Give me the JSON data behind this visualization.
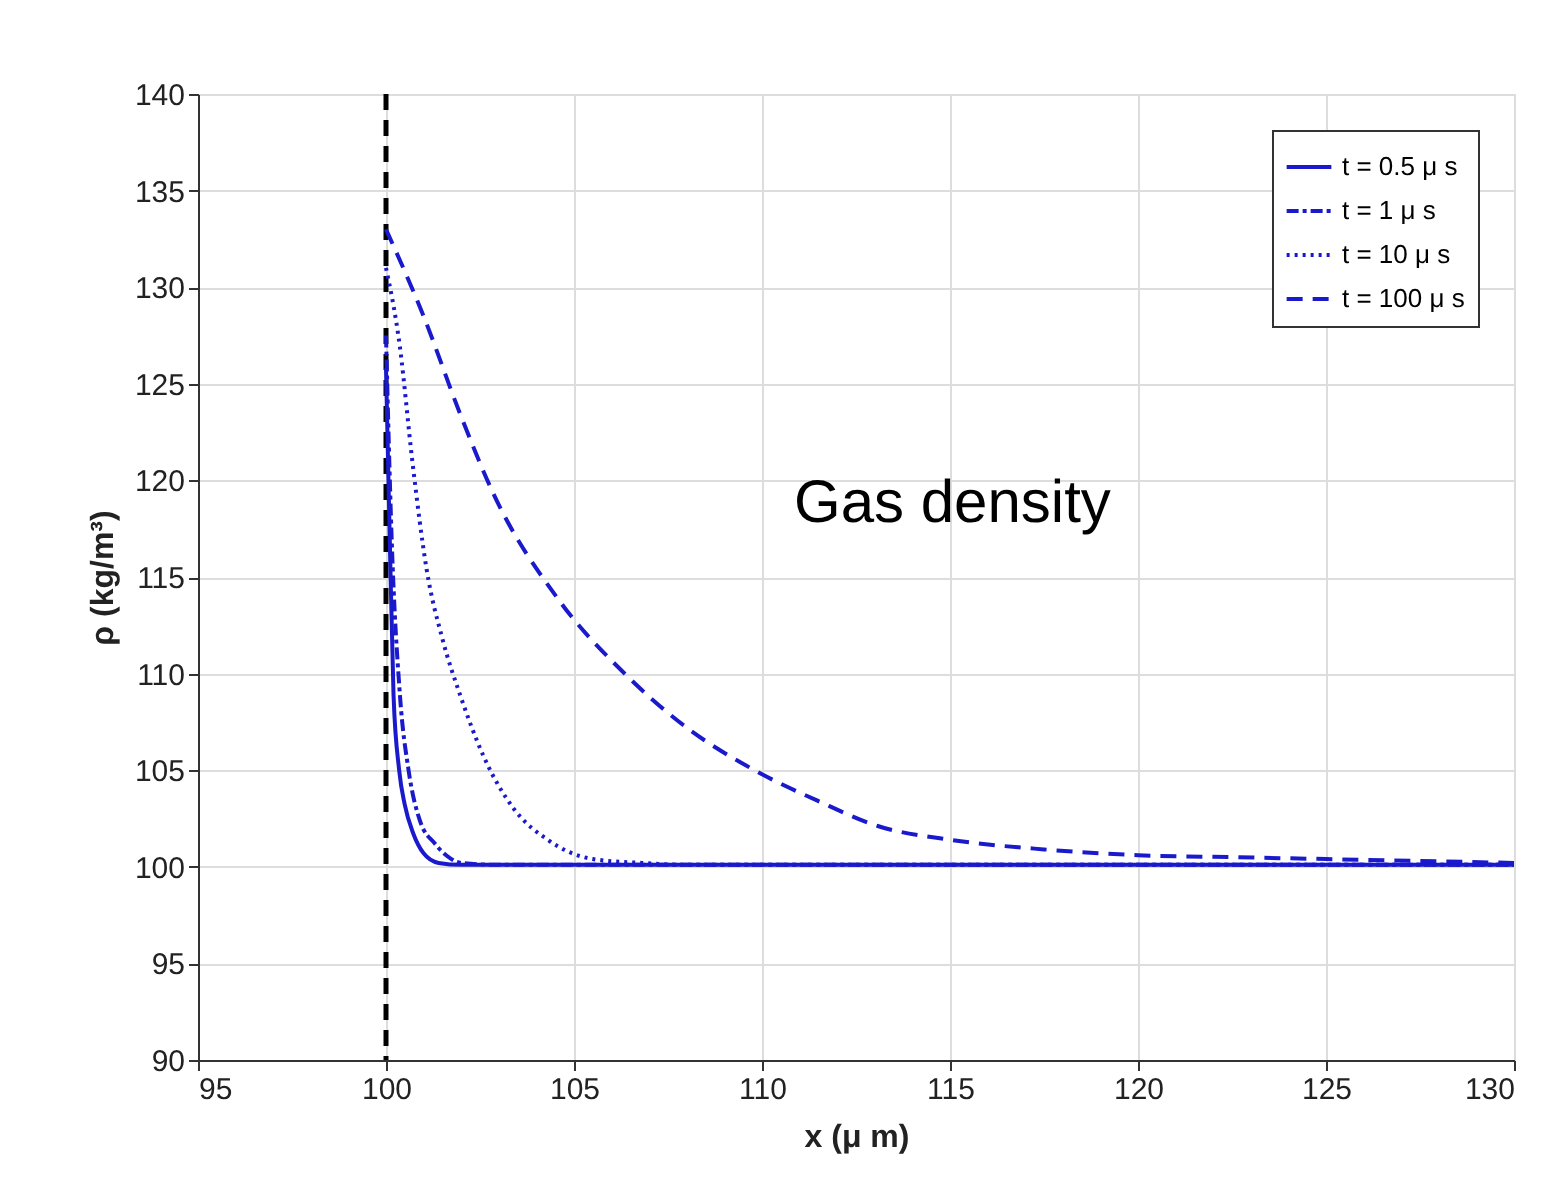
{
  "chart_data": {
    "type": "line",
    "xlabel": "x (μ m)",
    "ylabel": "ρ (kg/m³)",
    "xlim": [
      95,
      130
    ],
    "xticks": [
      95,
      100,
      105,
      110,
      115,
      120,
      125,
      130
    ],
    "ylim": [
      90,
      140
    ],
    "yticks": [
      90,
      95,
      100,
      105,
      110,
      115,
      120,
      125,
      130,
      135,
      140
    ],
    "grid": true,
    "legend": "top right",
    "marker": "none",
    "series": [
      {
        "name": "t = 0.5 μ s",
        "color": "#1a1acc",
        "line_style": "solid",
        "x": [
          100,
          100.1,
          100.2,
          100.35,
          100.5,
          100.73,
          101,
          101.4,
          102,
          105,
          110,
          120,
          130
        ],
        "values": [
          125.8,
          117,
          108.9,
          105,
          103.2,
          101.7,
          100.7,
          100.2,
          100.1,
          100.1,
          100.1,
          100.1,
          100.1
        ]
      },
      {
        "name": "t = 1 μ s",
        "color": "#1a1acc",
        "line_style": "dashdot",
        "x": [
          100,
          100.15,
          100.37,
          100.6,
          100.9,
          101.3,
          101.6,
          102,
          103,
          105,
          110,
          120,
          130
        ],
        "values": [
          127.5,
          117,
          108.9,
          105,
          102.4,
          101.2,
          100.6,
          100.2,
          100.1,
          100.1,
          100.1,
          100.1,
          100.1
        ]
      },
      {
        "name": "t = 10 μ s",
        "color": "#1a1acc",
        "line_style": "dotted",
        "x": [
          100,
          100.37,
          100.7,
          101.08,
          101.5,
          101.97,
          102.6,
          103.4,
          104.3,
          105.5,
          106.8,
          108,
          110,
          120,
          130
        ],
        "values": [
          131,
          126.9,
          121,
          115.4,
          111.8,
          108.9,
          105.7,
          103,
          101.4,
          100.4,
          100.2,
          100.1,
          100.1,
          100.1,
          100.1
        ]
      },
      {
        "name": "t = 100 μ s",
        "color": "#1a1acc",
        "line_style": "dashed",
        "x": [
          100,
          101,
          102,
          102.86,
          104.6,
          106.4,
          108,
          109.8,
          111.5,
          113.1,
          115,
          117.5,
          120,
          122.5,
          125,
          127.5,
          130
        ],
        "values": [
          133,
          128.5,
          123.3,
          119.3,
          113.8,
          109.9,
          107.2,
          105,
          103.4,
          102.1,
          101.4,
          100.9,
          100.6,
          100.5,
          100.4,
          100.3,
          100.2
        ]
      }
    ],
    "ref_lines": [
      {
        "axis": "x",
        "value": 100,
        "color": "#000000",
        "line_style": "dashed"
      }
    ],
    "annotations": [
      "Gas density"
    ]
  }
}
